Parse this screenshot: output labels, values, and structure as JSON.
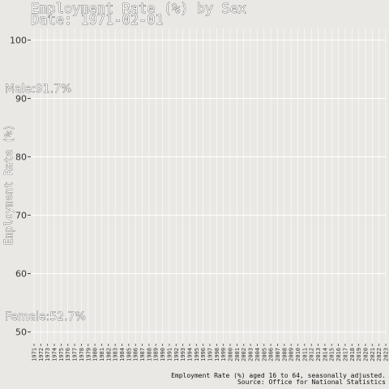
{
  "chart_data": {
    "type": "line",
    "title": "Employment Rate (%) by Sex",
    "subtitle": "Date: 1971-02-01",
    "ylabel": "Employment Rate (%)",
    "xlabel": "",
    "ylim": [
      48,
      102
    ],
    "yticks": [
      50,
      60,
      70,
      80,
      90,
      100
    ],
    "categories": [
      "1971",
      "1972",
      "1973",
      "1974",
      "1975",
      "1976",
      "1977",
      "1978",
      "1979",
      "1980",
      "1981",
      "1982",
      "1983",
      "1984",
      "1985",
      "1986",
      "1987",
      "1988",
      "1989",
      "1990",
      "1991",
      "1992",
      "1993",
      "1994",
      "1995",
      "1996",
      "1997",
      "1998",
      "1999",
      "2000",
      "2001",
      "2002",
      "2003",
      "2004",
      "2005",
      "2006",
      "2007",
      "2008",
      "2009",
      "2010",
      "2011",
      "2012",
      "2013",
      "2014",
      "2015",
      "2016",
      "2017",
      "2018",
      "2019",
      "2020",
      "2021",
      "2022",
      "2023"
    ],
    "annotations": [
      {
        "text": "Male:91.7%",
        "value": 91.7
      },
      {
        "text": "Female:52.7%",
        "value": 52.7
      }
    ],
    "grid": true,
    "legend": "none",
    "caption_line1": "Employment Rate (%) aged 16 to 64, seasonally adjusted.",
    "caption_line2": "Source: Office for National Statistics",
    "colors": {
      "background": "#e9e8e4",
      "grid": "#ffffff",
      "text": "#333333"
    }
  }
}
